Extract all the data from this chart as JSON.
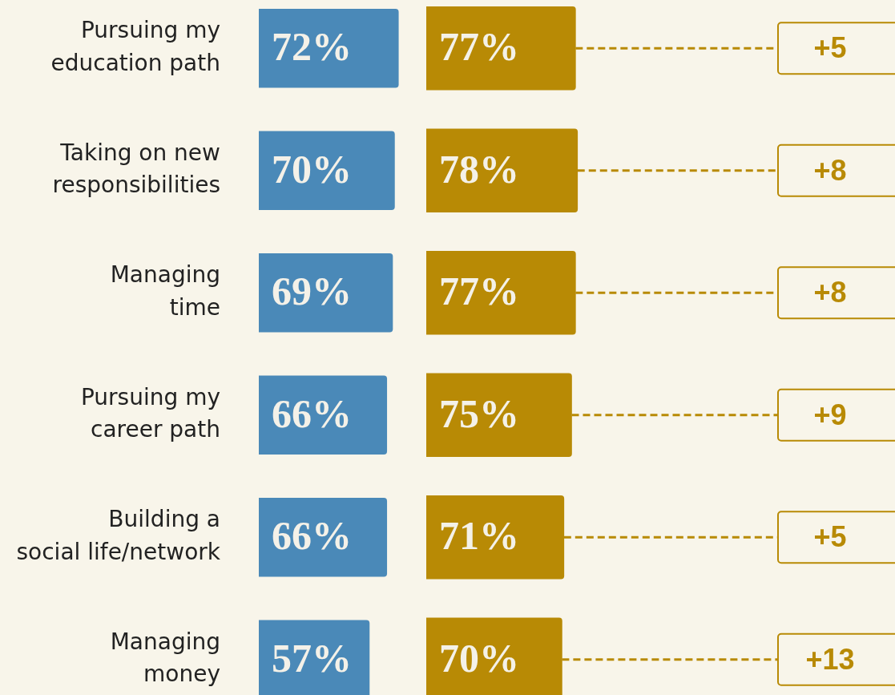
{
  "chart_data": [
    {
      "type": "bar",
      "orientation": "horizontal",
      "categories": [
        "Pursuing my\neducation path",
        "Taking on new\nresponsibilities",
        "Managing\ntime",
        "Pursuing my\ncareer path",
        "Building a\nsocial life/network",
        "Managing\nmoney"
      ],
      "series": [
        {
          "color": "#4a89b8",
          "values": [
            72,
            70,
            69,
            66,
            66,
            57
          ],
          "value_labels": [
            "72%",
            "70%",
            "69%",
            "66%",
            "66%",
            "57%"
          ]
        }
      ]
    },
    {
      "type": "bar",
      "orientation": "horizontal",
      "tick_labels": false,
      "categories": [
        null,
        null,
        null,
        null,
        null,
        null
      ],
      "series": [
        {
          "color": "#b88a05",
          "values": [
            77,
            78,
            77,
            75,
            71,
            70
          ],
          "value_labels": [
            "77%",
            "78%",
            "77%",
            "75%",
            "71%",
            "70%"
          ]
        }
      ],
      "annotations": [
        "+5",
        "+8",
        "+8",
        "+9",
        "+5",
        "+13"
      ]
    }
  ]
}
